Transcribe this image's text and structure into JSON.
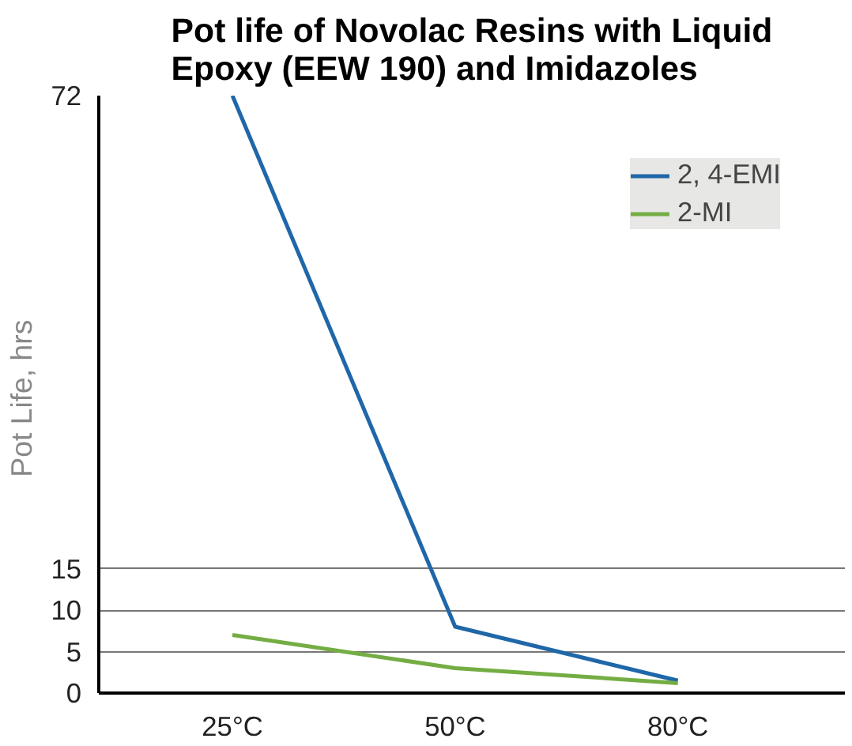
{
  "chart_data": {
    "type": "line",
    "title": "Pot life of Novolac Resins with Liquid\nEpoxy (EEW 190) and Imidazoles",
    "ylabel": "Pot Life,  hrs",
    "categories": [
      "25°C",
      "50°C",
      "80°C"
    ],
    "series": [
      {
        "name": "2, 4-EMI",
        "color": "#1f67a8",
        "values": [
          72,
          8,
          1.5
        ]
      },
      {
        "name": "2-MI",
        "color": "#74ad43",
        "values": [
          7,
          3,
          1.2
        ]
      }
    ],
    "ylim": [
      0,
      72
    ],
    "yticks": [
      0,
      5,
      10,
      15,
      72
    ],
    "grid": "y",
    "legend": "top right"
  }
}
